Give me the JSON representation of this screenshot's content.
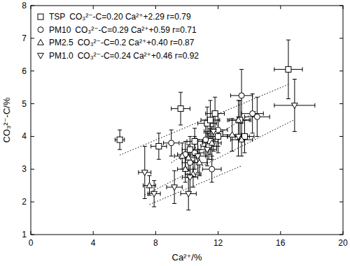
{
  "chart_data": {
    "type": "scatter",
    "x_label": "Ca²⁺/%",
    "y_label": "CO₃²⁻-C/%",
    "xlim": [
      0,
      20
    ],
    "ylim": [
      1,
      8
    ],
    "xticks": [
      0,
      4,
      8,
      12,
      16,
      20
    ],
    "yticks": [
      1,
      2,
      3,
      4,
      5,
      6,
      7,
      8
    ],
    "grid": false,
    "legend": "top-left",
    "series": [
      {
        "name": "TSP",
        "fit_label": "CO₃²⁻-C=0.20 Ca²⁺+2.29 r=0.79",
        "slope": 0.2,
        "intercept": 2.29,
        "marker": "square",
        "color": "#000000",
        "x": [
          5.7,
          8.2,
          9.6,
          10.2,
          10.5,
          11.3,
          11.5,
          11.5,
          11.8,
          12.0,
          13.4,
          13.7,
          16.5
        ],
        "values": [
          3.9,
          3.7,
          4.85,
          3.6,
          3.85,
          4.4,
          4.5,
          3.85,
          4.7,
          4.0,
          4.5,
          4.0,
          6.05
        ],
        "x_err": [
          0.3,
          0.5,
          0.6,
          0.5,
          0.5,
          0.6,
          0.6,
          0.5,
          0.6,
          0.6,
          0.7,
          0.6,
          0.9
        ],
        "y_err": [
          0.3,
          0.4,
          0.5,
          0.4,
          0.4,
          0.5,
          0.6,
          0.4,
          0.5,
          0.5,
          0.6,
          0.5,
          0.9
        ]
      },
      {
        "name": "PM10",
        "fit_label": "CO₃²⁻-C=0.29 Ca²⁺+0.59 r=0.71",
        "slope": 0.29,
        "intercept": 0.59,
        "marker": "circle",
        "color": "#000000",
        "x": [
          9.0,
          9.9,
          10.2,
          10.5,
          11.2,
          11.4,
          11.6,
          12.0,
          13.5,
          14.2,
          14.5
        ],
        "values": [
          3.8,
          3.45,
          3.2,
          3.5,
          3.9,
          3.7,
          3.0,
          4.2,
          5.25,
          4.7,
          4.6
        ],
        "x_err": [
          0.5,
          0.5,
          0.5,
          0.6,
          0.6,
          0.5,
          0.6,
          0.6,
          0.7,
          0.7,
          0.8
        ],
        "y_err": [
          0.4,
          0.4,
          0.4,
          0.5,
          0.5,
          0.4,
          0.4,
          0.5,
          0.8,
          0.6,
          0.6
        ]
      },
      {
        "name": "PM2.5",
        "fit_label": "CO₃²⁻-C=0.2 Ca²⁺+0.40 r=0.87",
        "slope": 0.2,
        "intercept": 0.4,
        "marker": "triangle",
        "color": "#000000",
        "x": [
          7.6,
          9.7,
          9.9,
          10.1,
          10.4,
          10.8,
          11.6,
          12.9,
          13.3,
          13.5
        ],
        "values": [
          2.5,
          3.4,
          3.0,
          3.35,
          2.85,
          3.2,
          3.8,
          4.05,
          4.5,
          3.9
        ],
        "x_err": [
          0.4,
          0.5,
          0.5,
          0.5,
          0.5,
          0.5,
          0.6,
          0.6,
          0.7,
          0.7
        ],
        "y_err": [
          0.3,
          0.4,
          0.4,
          0.4,
          0.4,
          0.4,
          0.5,
          0.5,
          0.6,
          0.5
        ]
      },
      {
        "name": "PM1.0",
        "fit_label": "CO₃²⁻-C=0.24 Ca²⁺+0.46 r=0.92",
        "slope": 0.24,
        "intercept": 0.46,
        "marker": "triangle-down",
        "color": "#000000",
        "x": [
          7.3,
          7.9,
          9.2,
          10.1,
          10.2,
          10.7,
          11.3,
          11.7,
          13.3,
          16.9
        ],
        "values": [
          2.9,
          2.25,
          2.45,
          2.25,
          2.75,
          3.4,
          3.6,
          4.15,
          4.0,
          4.95
        ],
        "x_err": [
          0.4,
          0.4,
          0.5,
          0.5,
          0.5,
          0.5,
          0.6,
          0.6,
          0.7,
          1.3
        ],
        "y_err": [
          0.8,
          0.4,
          0.5,
          0.5,
          0.5,
          0.5,
          0.5,
          0.6,
          0.6,
          0.8
        ]
      }
    ]
  }
}
